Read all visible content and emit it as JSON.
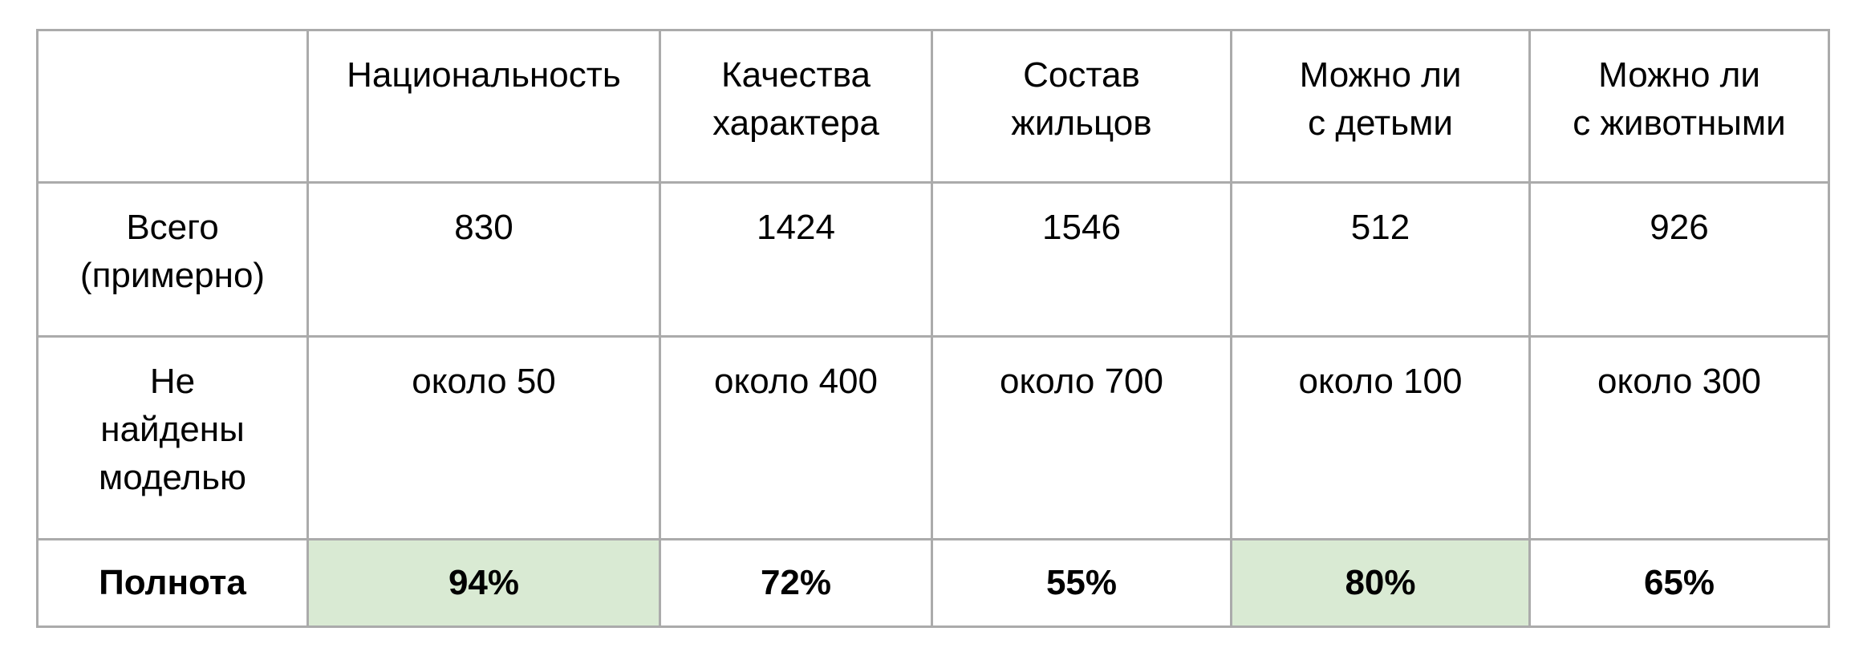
{
  "table": {
    "headers": [
      "",
      "Национальность",
      "Качества\nхарактера",
      "Состав\nжильцов",
      "Можно ли\nс детьми",
      "Можно ли\nс животными"
    ],
    "rows": [
      {
        "label": "Всего\n(примерно)",
        "cells": [
          "830",
          "1424",
          "1546",
          "512",
          "926"
        ]
      },
      {
        "label": "Не\nнайдены\nмоделью",
        "cells": [
          "около 50",
          "около 400",
          "около 700",
          "около 100",
          "около 300"
        ]
      },
      {
        "label": "Полнота",
        "cells": [
          "94%",
          "72%",
          "55%",
          "80%",
          "65%"
        ]
      }
    ],
    "highlight_color": "#d9ead3",
    "highlighted_cells": [
      "94%",
      "80%"
    ]
  }
}
